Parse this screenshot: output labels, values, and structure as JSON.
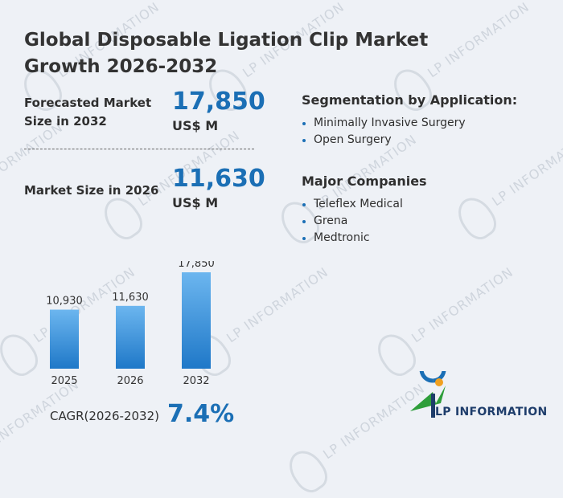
{
  "title": "Global Disposable Ligation Clip Market Growth 2026-2032",
  "stats": {
    "forecast_label_line1": "Forecasted Market",
    "forecast_label_line2": "Size in 2032",
    "forecast_value": "17,850",
    "forecast_unit": "US$ M",
    "current_label": "Market Size in 2026",
    "current_value": "11,630",
    "current_unit": "US$ M"
  },
  "segmentation": {
    "heading": "Segmentation by Application:",
    "items": [
      "Minimally Invasive Surgery",
      "Open Surgery"
    ]
  },
  "companies": {
    "heading": "Major Companies",
    "items": [
      "Teleflex Medical",
      "Grena",
      "Medtronic"
    ]
  },
  "cagr": {
    "label": "CAGR(2026-2032)",
    "value": "7.4%"
  },
  "brand": {
    "name": "LP INFORMATION",
    "watermark": "LP INFORMATION",
    "icon": "lp-information-logo-icon"
  },
  "colors": {
    "accent": "#1b6fb5",
    "bar_top": "#6cb6ef",
    "bar_bottom": "#1f78c8"
  },
  "chart_data": {
    "type": "bar",
    "categories": [
      "2025",
      "2026",
      "2032"
    ],
    "values": [
      10930,
      11630,
      17850
    ],
    "value_labels": [
      "10,930",
      "11,630",
      "17,850"
    ],
    "title": "",
    "xlabel": "",
    "ylabel": "",
    "ylim": [
      0,
      17850
    ]
  }
}
